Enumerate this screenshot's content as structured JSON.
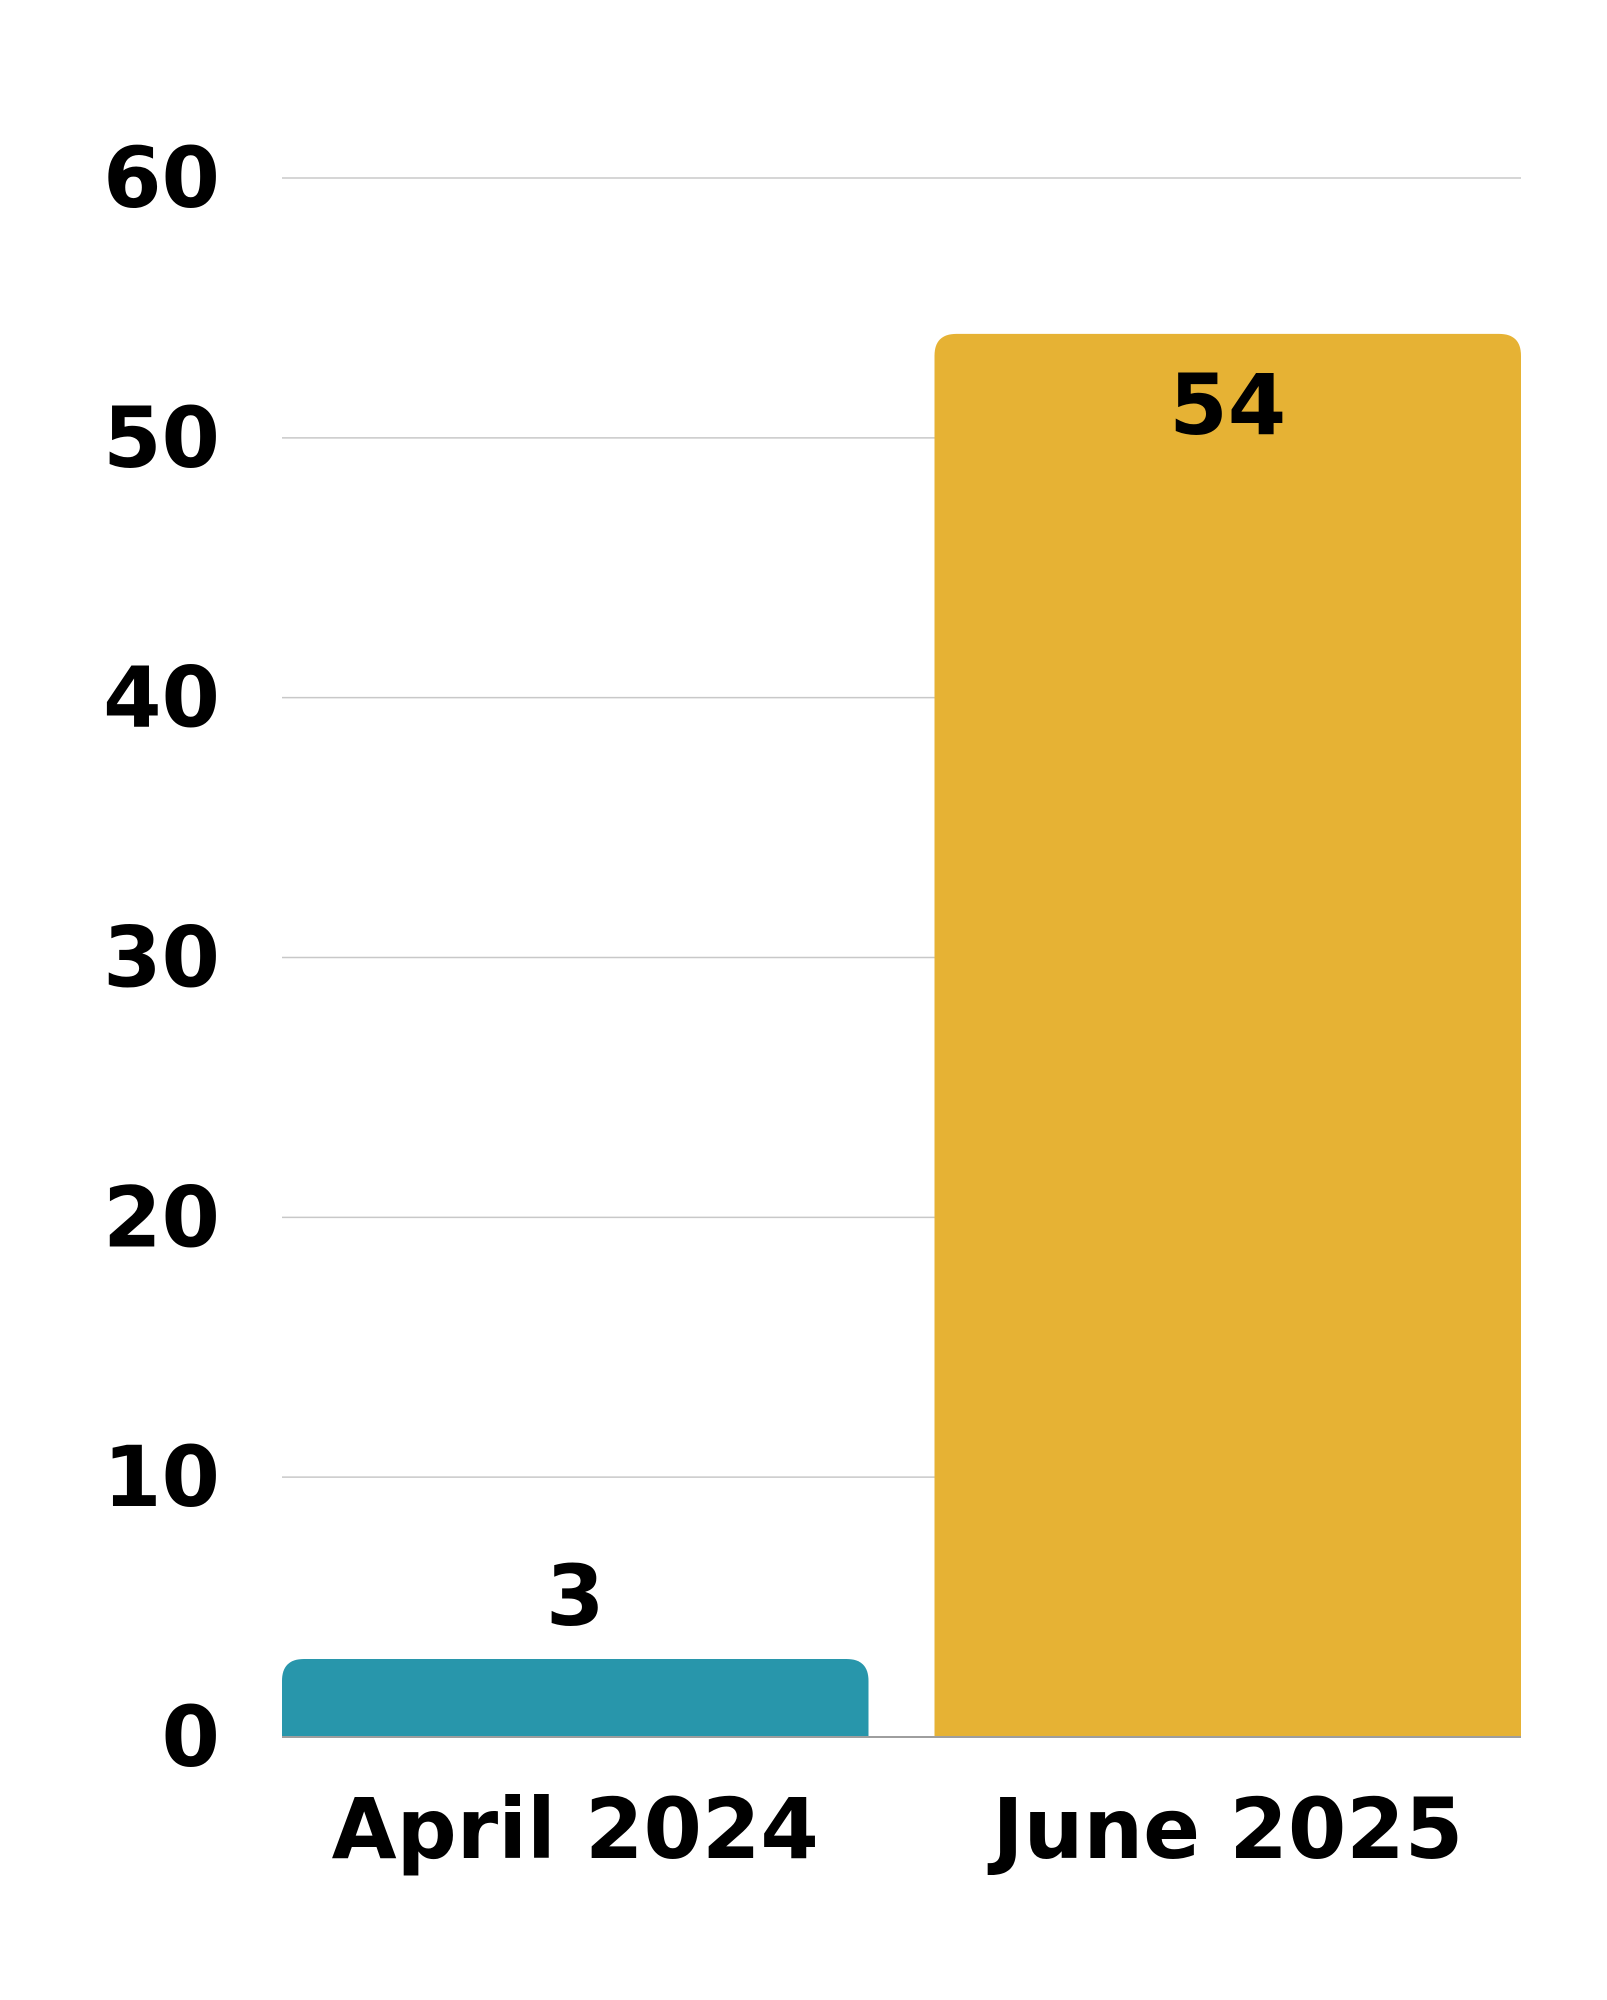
{
  "chart_data": {
    "type": "bar",
    "categories": [
      "April 2024",
      "June 2025"
    ],
    "values": [
      3,
      54
    ],
    "data_labels": [
      "3",
      "54"
    ],
    "colors": [
      "#2896ab",
      "#e6b234"
    ],
    "ylim": [
      0,
      60
    ],
    "yticks": [
      "0",
      "10",
      "20",
      "30",
      "40",
      "50",
      "60"
    ],
    "title": "",
    "xlabel": "",
    "ylabel": "",
    "grid": true,
    "legend": "none"
  }
}
